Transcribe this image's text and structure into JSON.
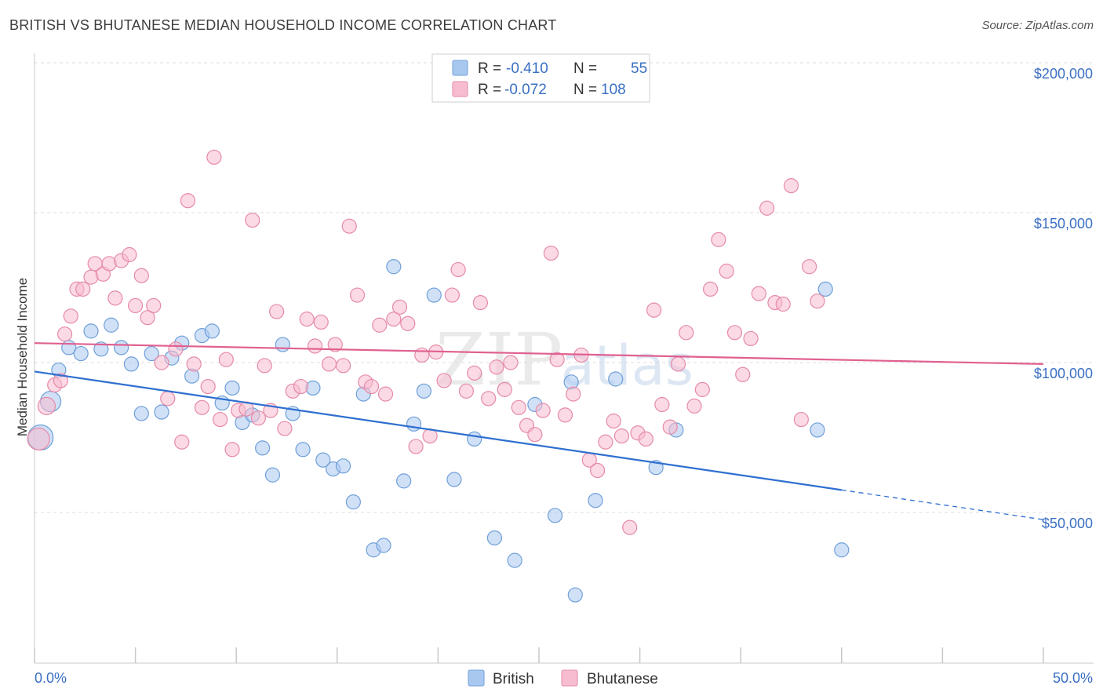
{
  "title": "BRITISH VS BHUTANESE MEDIAN HOUSEHOLD INCOME CORRELATION CHART",
  "source": "Source: ZipAtlas.com",
  "watermark": {
    "zip": "ZIP",
    "atlas": "atlas"
  },
  "legend_box": [
    {
      "r_label": "R =",
      "r_value": "-0.410",
      "n_label": "N =",
      "n_value": "55",
      "color": "#a9c8f0",
      "stroke": "#6f9fd8"
    },
    {
      "r_label": "R =",
      "r_value": "-0.072",
      "n_label": "N =",
      "n_value": "108",
      "color": "#f7bcd0",
      "stroke": "#e68aa8"
    }
  ],
  "chart_data": {
    "type": "scatter",
    "ylabel": "Median Household Income",
    "xlim": [
      0,
      50
    ],
    "ylim": [
      0,
      210000
    ],
    "y_ticks": [
      {
        "value": 50000,
        "label": "$50,000"
      },
      {
        "value": 100000,
        "label": "$100,000"
      },
      {
        "value": 150000,
        "label": "$150,000"
      },
      {
        "value": 200000,
        "label": "$200,000"
      }
    ],
    "x_tick_labels": {
      "min": "0.0%",
      "max": "50.0%"
    },
    "grid": true,
    "legend_position": "top-center",
    "series": [
      {
        "name": "British",
        "color": "#a9c8f0",
        "stroke": "#6f9fd8",
        "line_color": "#2f6fd0",
        "trend": {
          "x0": 0,
          "y0": 97000,
          "x1": 40,
          "y1": 57500,
          "dash_to_x": 50,
          "dash_to_y": 47600
        },
        "points": [
          [
            0.3,
            75000,
            16
          ],
          [
            0.8,
            87000,
            13
          ],
          [
            1.2,
            97500,
            9
          ],
          [
            1.7,
            105000,
            9
          ],
          [
            2.3,
            103000,
            9
          ],
          [
            2.8,
            110500,
            9
          ],
          [
            3.3,
            104500,
            9
          ],
          [
            3.8,
            112500,
            9
          ],
          [
            4.3,
            105000,
            9
          ],
          [
            4.8,
            99500,
            9
          ],
          [
            5.3,
            83000,
            9
          ],
          [
            5.8,
            103000,
            9
          ],
          [
            6.3,
            83500,
            9
          ],
          [
            6.8,
            101500,
            9
          ],
          [
            7.3,
            106500,
            9
          ],
          [
            7.8,
            95500,
            9
          ],
          [
            8.3,
            109000,
            9
          ],
          [
            8.8,
            110500,
            9
          ],
          [
            9.3,
            86500,
            9
          ],
          [
            9.8,
            91500,
            9
          ],
          [
            10.3,
            80000,
            9
          ],
          [
            10.8,
            82500,
            9
          ],
          [
            11.3,
            71500,
            9
          ],
          [
            11.8,
            62500,
            9
          ],
          [
            12.3,
            106000,
            9
          ],
          [
            12.8,
            83000,
            9
          ],
          [
            13.3,
            71000,
            9
          ],
          [
            13.8,
            91500,
            9
          ],
          [
            14.3,
            67500,
            9
          ],
          [
            14.8,
            64500,
            9
          ],
          [
            15.3,
            65500,
            9
          ],
          [
            15.8,
            53500,
            9
          ],
          [
            16.3,
            89500,
            9
          ],
          [
            16.8,
            37500,
            9
          ],
          [
            17.3,
            39000,
            9
          ],
          [
            17.8,
            132000,
            9
          ],
          [
            18.3,
            60500,
            9
          ],
          [
            18.8,
            79500,
            9
          ],
          [
            19.3,
            90500,
            9
          ],
          [
            19.8,
            122500,
            9
          ],
          [
            20.8,
            61000,
            9
          ],
          [
            21.8,
            74500,
            9
          ],
          [
            22.8,
            41500,
            9
          ],
          [
            23.8,
            34000,
            9
          ],
          [
            24.8,
            86000,
            9
          ],
          [
            25.8,
            49000,
            9
          ],
          [
            26.8,
            22500,
            9
          ],
          [
            27.8,
            54000,
            9
          ],
          [
            28.8,
            94500,
            9
          ],
          [
            30.8,
            65000,
            9
          ],
          [
            31.8,
            77500,
            9
          ],
          [
            38.8,
            77500,
            9
          ],
          [
            39.2,
            124500,
            9
          ],
          [
            40.0,
            37500,
            9
          ],
          [
            26.6,
            93500,
            9
          ]
        ]
      },
      {
        "name": "Bhutanese",
        "color": "#f7bcd0",
        "stroke": "#e68aa8",
        "line_color": "#e06090",
        "trend": {
          "x0": 0,
          "y0": 106500,
          "x1": 50,
          "y1": 99500
        },
        "points": [
          [
            0.2,
            74500,
            14
          ],
          [
            0.6,
            85500,
            11
          ],
          [
            1.0,
            92500,
            9
          ],
          [
            1.3,
            94000,
            9
          ],
          [
            1.5,
            109500,
            9
          ],
          [
            1.8,
            115500,
            9
          ],
          [
            2.1,
            124500,
            9
          ],
          [
            2.4,
            124500,
            9
          ],
          [
            2.8,
            128500,
            9
          ],
          [
            3.0,
            133000,
            9
          ],
          [
            3.4,
            129500,
            9
          ],
          [
            3.7,
            133000,
            9
          ],
          [
            4.0,
            121500,
            9
          ],
          [
            4.3,
            134000,
            9
          ],
          [
            4.7,
            136000,
            9
          ],
          [
            5.0,
            119000,
            9
          ],
          [
            5.3,
            129000,
            9
          ],
          [
            5.6,
            115000,
            9
          ],
          [
            5.9,
            119000,
            9
          ],
          [
            6.3,
            100000,
            9
          ],
          [
            6.6,
            88000,
            9
          ],
          [
            7.0,
            104500,
            9
          ],
          [
            7.3,
            73500,
            9
          ],
          [
            7.6,
            154000,
            9
          ],
          [
            7.9,
            99500,
            9
          ],
          [
            8.3,
            85000,
            9
          ],
          [
            8.6,
            92000,
            9
          ],
          [
            8.9,
            168500,
            9
          ],
          [
            9.2,
            81000,
            9
          ],
          [
            9.5,
            101000,
            9
          ],
          [
            9.8,
            71000,
            9
          ],
          [
            10.1,
            84000,
            9
          ],
          [
            10.5,
            84500,
            9
          ],
          [
            10.8,
            147500,
            9
          ],
          [
            11.1,
            81500,
            9
          ],
          [
            11.4,
            99000,
            9
          ],
          [
            11.7,
            84000,
            9
          ],
          [
            12.0,
            117000,
            9
          ],
          [
            12.4,
            78000,
            9
          ],
          [
            12.8,
            90500,
            9
          ],
          [
            13.2,
            92000,
            9
          ],
          [
            13.5,
            114500,
            9
          ],
          [
            13.9,
            105500,
            9
          ],
          [
            14.2,
            113500,
            9
          ],
          [
            14.6,
            99500,
            9
          ],
          [
            14.9,
            106000,
            9
          ],
          [
            15.3,
            99000,
            9
          ],
          [
            15.6,
            145500,
            9
          ],
          [
            16.0,
            122500,
            9
          ],
          [
            16.4,
            93500,
            9
          ],
          [
            16.7,
            92000,
            9
          ],
          [
            17.1,
            112500,
            9
          ],
          [
            17.4,
            89500,
            9
          ],
          [
            17.8,
            114500,
            9
          ],
          [
            18.1,
            118500,
            9
          ],
          [
            18.5,
            113000,
            9
          ],
          [
            18.9,
            72000,
            9
          ],
          [
            19.2,
            102500,
            9
          ],
          [
            19.6,
            75500,
            9
          ],
          [
            19.9,
            103500,
            9
          ],
          [
            20.3,
            94000,
            9
          ],
          [
            20.7,
            122500,
            9
          ],
          [
            21.0,
            131000,
            9
          ],
          [
            21.4,
            90500,
            9
          ],
          [
            21.8,
            96500,
            9
          ],
          [
            22.1,
            120000,
            9
          ],
          [
            22.5,
            88000,
            9
          ],
          [
            22.9,
            98500,
            9
          ],
          [
            23.3,
            91000,
            9
          ],
          [
            23.6,
            100000,
            9
          ],
          [
            24.0,
            85000,
            9
          ],
          [
            24.4,
            79000,
            9
          ],
          [
            24.8,
            76000,
            9
          ],
          [
            25.2,
            84000,
            9
          ],
          [
            25.6,
            136500,
            9
          ],
          [
            25.9,
            101000,
            9
          ],
          [
            26.3,
            82500,
            9
          ],
          [
            26.7,
            89500,
            9
          ],
          [
            27.1,
            102500,
            9
          ],
          [
            27.5,
            67500,
            9
          ],
          [
            27.9,
            64000,
            9
          ],
          [
            28.3,
            73500,
            9
          ],
          [
            28.7,
            80500,
            9
          ],
          [
            29.1,
            75500,
            9
          ],
          [
            29.5,
            45000,
            9
          ],
          [
            29.9,
            76500,
            9
          ],
          [
            30.3,
            74500,
            9
          ],
          [
            30.7,
            117500,
            9
          ],
          [
            31.1,
            86000,
            9
          ],
          [
            31.5,
            78500,
            9
          ],
          [
            31.9,
            99500,
            9
          ],
          [
            32.3,
            110000,
            9
          ],
          [
            32.7,
            85500,
            9
          ],
          [
            33.1,
            91000,
            9
          ],
          [
            33.5,
            124500,
            9
          ],
          [
            33.9,
            141000,
            9
          ],
          [
            34.3,
            130500,
            9
          ],
          [
            34.7,
            110000,
            9
          ],
          [
            35.1,
            96000,
            9
          ],
          [
            35.5,
            108000,
            9
          ],
          [
            35.9,
            123000,
            9
          ],
          [
            36.3,
            151500,
            9
          ],
          [
            36.7,
            120000,
            9
          ],
          [
            37.1,
            119500,
            9
          ],
          [
            37.5,
            159000,
            9
          ],
          [
            38.0,
            81000,
            9
          ],
          [
            38.4,
            132000,
            9
          ],
          [
            38.8,
            120500,
            9
          ]
        ]
      }
    ]
  },
  "bottom_legend": [
    {
      "label": "British",
      "color": "#a9c8f0",
      "stroke": "#6f9fd8"
    },
    {
      "label": "Bhutanese",
      "color": "#f7bcd0",
      "stroke": "#e68aa8"
    }
  ]
}
